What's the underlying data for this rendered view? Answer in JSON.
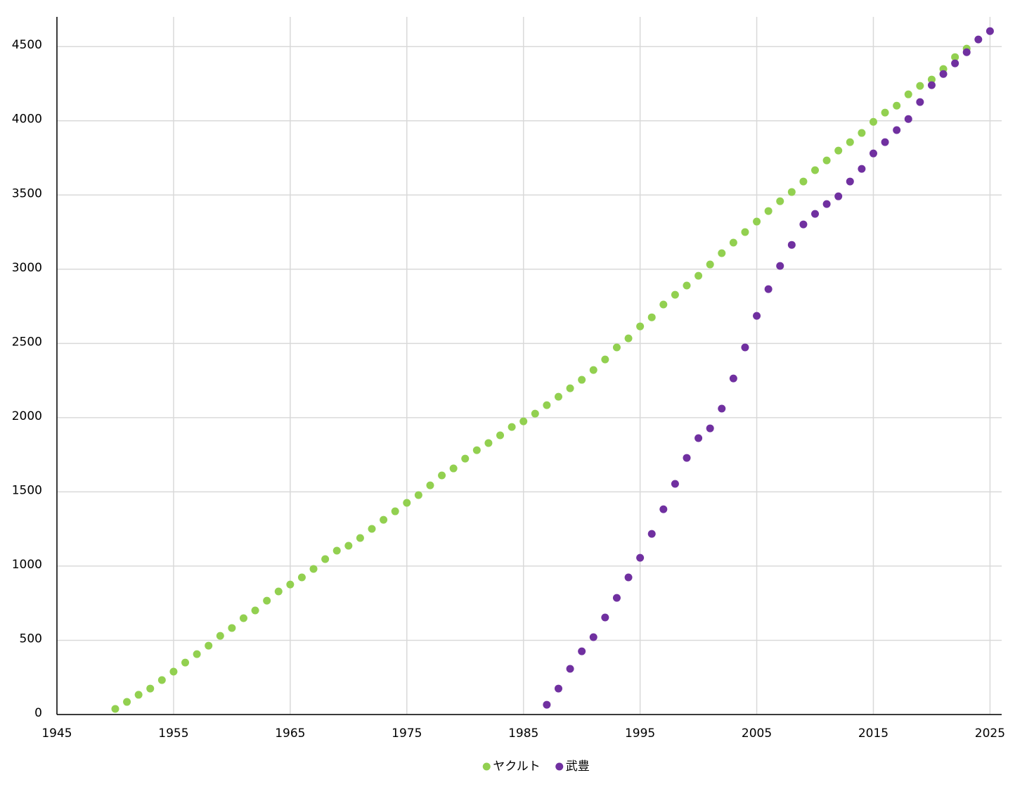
{
  "chart_data": {
    "type": "scatter",
    "xlim": [
      1945,
      2026
    ],
    "ylim": [
      0,
      4700
    ],
    "xticks": [
      1945,
      1955,
      1965,
      1975,
      1985,
      1995,
      2005,
      2015,
      2025
    ],
    "yticks": [
      0,
      500,
      1000,
      1500,
      2000,
      2500,
      3000,
      3500,
      4000,
      4500
    ],
    "grid": true,
    "legend": "bottom",
    "series": [
      {
        "name": "ヤクルト",
        "color": "#92d050",
        "x": [
          1950,
          1951,
          1952,
          1953,
          1954,
          1955,
          1956,
          1957,
          1958,
          1959,
          1960,
          1961,
          1962,
          1963,
          1964,
          1965,
          1966,
          1967,
          1968,
          1969,
          1970,
          1971,
          1972,
          1973,
          1974,
          1975,
          1976,
          1977,
          1978,
          1979,
          1980,
          1981,
          1982,
          1983,
          1984,
          1985,
          1986,
          1987,
          1988,
          1989,
          1990,
          1991,
          1992,
          1993,
          1994,
          1995,
          1996,
          1997,
          1998,
          1999,
          2000,
          2001,
          2002,
          2003,
          2004,
          2005,
          2006,
          2007,
          2008,
          2009,
          2010,
          2011,
          2012,
          2013,
          2014,
          2015,
          2016,
          2017,
          2018,
          2019,
          2020,
          2021,
          2022,
          2023
        ],
        "values": [
          38,
          85,
          133,
          175,
          232,
          289,
          350,
          407,
          464,
          530,
          583,
          649,
          701,
          767,
          829,
          876,
          924,
          981,
          1047,
          1104,
          1137,
          1189,
          1251,
          1312,
          1369,
          1426,
          1478,
          1544,
          1611,
          1658,
          1724,
          1781,
          1829,
          1881,
          1937,
          1975,
          2027,
          2084,
          2141,
          2198,
          2255,
          2321,
          2392,
          2473,
          2534,
          2615,
          2676,
          2762,
          2828,
          2890,
          2956,
          3032,
          3108,
          3179,
          3250,
          3321,
          3392,
          3458,
          3520,
          3591,
          3667,
          3733,
          3799,
          3856,
          3918,
          3993,
          4055,
          4102,
          4178,
          4235,
          4278,
          4349,
          4429,
          4486
        ]
      },
      {
        "name": "武豊",
        "color": "#7030a0",
        "x": [
          1987,
          1988,
          1989,
          1990,
          1991,
          1992,
          1993,
          1994,
          1995,
          1996,
          1997,
          1998,
          1999,
          2000,
          2001,
          2002,
          2003,
          2004,
          2005,
          2006,
          2007,
          2008,
          2009,
          2010,
          2011,
          2012,
          2013,
          2014,
          2015,
          2016,
          2017,
          2018,
          2019,
          2020,
          2021,
          2022,
          2023,
          2024,
          2025
        ],
        "values": [
          66,
          175,
          308,
          426,
          521,
          654,
          786,
          924,
          1056,
          1217,
          1383,
          1554,
          1729,
          1862,
          1928,
          2061,
          2264,
          2473,
          2686,
          2866,
          3022,
          3164,
          3302,
          3373,
          3439,
          3491,
          3591,
          3676,
          3780,
          3856,
          3937,
          4012,
          4126,
          4240,
          4315,
          4387,
          4462,
          4548,
          4604
        ]
      }
    ]
  }
}
